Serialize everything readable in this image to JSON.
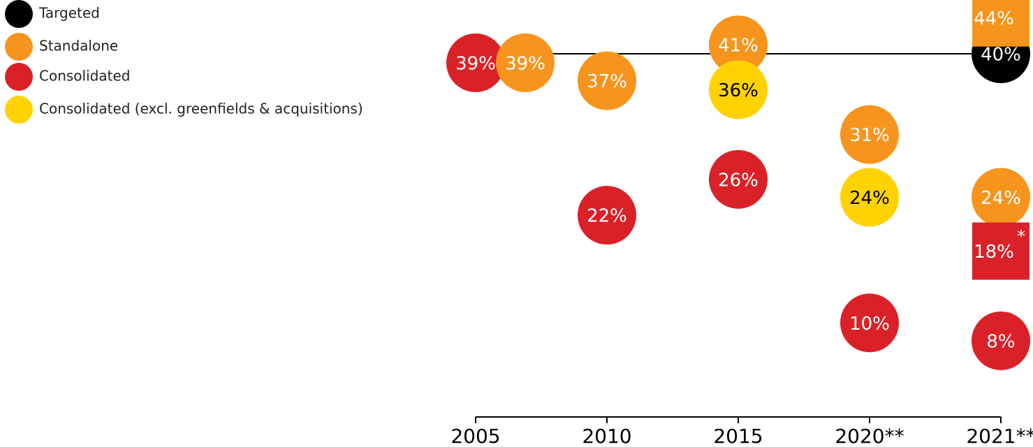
{
  "chart_data": {
    "type": "bubble",
    "categories": [
      "2005",
      "2010",
      "2015",
      "2020**",
      "2021**"
    ],
    "ylim": [
      2,
      46
    ],
    "series": [
      {
        "name": "Targeted",
        "color": "#000000",
        "text_color": "#ffffff",
        "values": [
          null,
          null,
          null,
          null,
          40
        ],
        "value_labels": [
          null,
          null,
          null,
          null,
          "40%"
        ]
      },
      {
        "name": "Standalone",
        "color": "#f7941d",
        "text_color": "#ffffff",
        "values": [
          39,
          37,
          41,
          31,
          24
        ],
        "value_labels": [
          "39%",
          "37%",
          "41%",
          "31%",
          "24%"
        ]
      },
      {
        "name": "Consolidated",
        "color": "#da2128",
        "text_color": "#ffffff",
        "values": [
          39,
          22,
          26,
          10,
          8
        ],
        "value_labels": [
          "39%",
          "22%",
          "26%",
          "10%",
          "8%"
        ]
      },
      {
        "name": "Consolidated (excl. greenfields & acquisitions)",
        "color": "#ffd200",
        "text_color": "#000000",
        "values": [
          null,
          null,
          36,
          24,
          null
        ],
        "value_labels": [
          null,
          null,
          "36%",
          "24%",
          null
        ]
      }
    ],
    "boxes": [
      {
        "series": 1,
        "category": 4,
        "value": 44,
        "value_label": "44%"
      },
      {
        "series": 2,
        "category": 4,
        "value": 18,
        "value_label": "18%",
        "note": "*"
      }
    ]
  }
}
